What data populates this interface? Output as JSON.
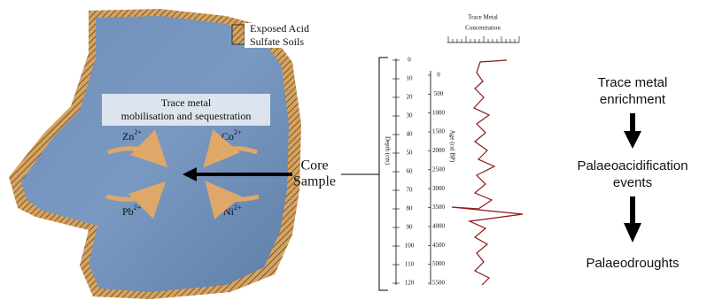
{
  "legend": {
    "line1": "Exposed Acid",
    "line2": "Sulfate Soils"
  },
  "map": {
    "process_line1": "Trace metal",
    "process_line2": "mobilisation and sequestration",
    "metals": [
      {
        "symbol": "Zn",
        "charge": "2+"
      },
      {
        "symbol": "Co",
        "charge": "2+"
      },
      {
        "symbol": "Pb",
        "charge": "2+"
      },
      {
        "symbol": "Ni",
        "charge": "2+"
      }
    ]
  },
  "core": {
    "line1": "Core",
    "line2": "Sample"
  },
  "profile": {
    "concentration_line1": "Trace Metal",
    "concentration_line2": "Concentration",
    "depth_label": "Depth (cm)",
    "age_label": "Age (cal BP)",
    "depth_ticks": [
      0,
      10,
      20,
      30,
      40,
      50,
      60,
      70,
      80,
      90,
      100,
      110,
      120
    ],
    "age_ticks": [
      0,
      500,
      1000,
      1500,
      2000,
      2500,
      3000,
      3500,
      4000,
      4500,
      5000,
      5500
    ]
  },
  "flow": {
    "step1_line1": "Trace metal",
    "step1_line2": "enrichment",
    "step2_line1": "Palaeoacidification",
    "step2_line2": "events",
    "step3": "Palaeodroughts"
  }
}
